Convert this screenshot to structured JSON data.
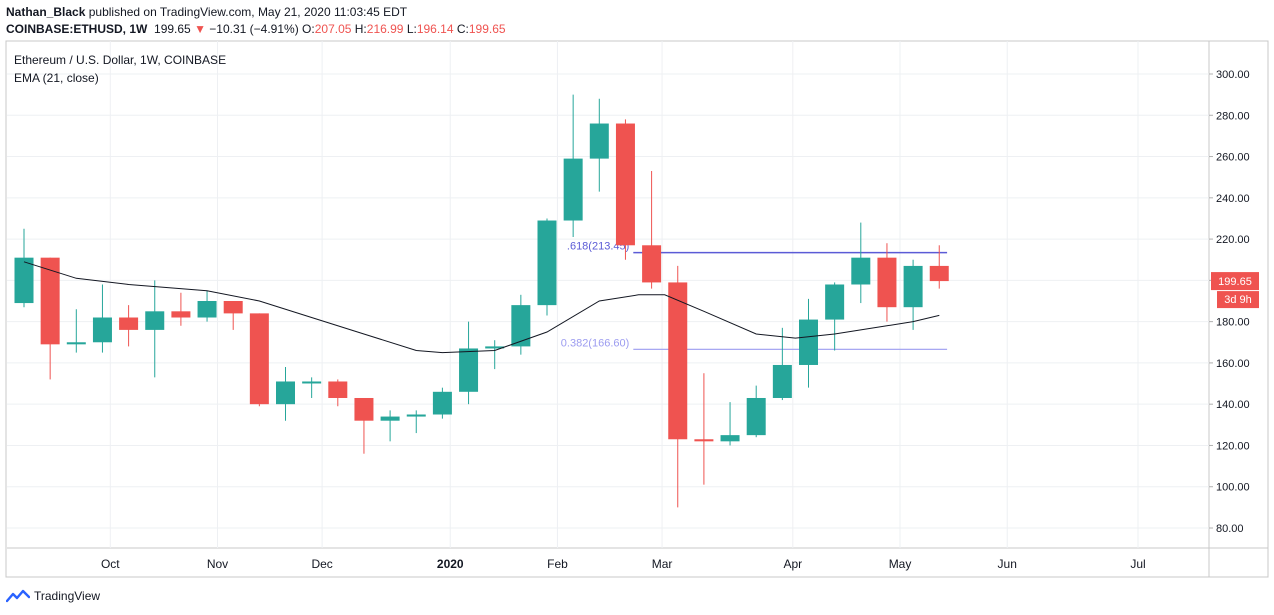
{
  "header": {
    "author": "Nathan_Black",
    "published_text": "published on TradingView.com, May 21, 2020 11:03:45 EDT",
    "symbol": "COINBASE:ETHUSD, 1W",
    "price": "199.65",
    "change_arrow": "▼",
    "change": "−10.31 (−4.91%)",
    "o_label": "O:",
    "o_val": "207.05",
    "h_label": "H:",
    "h_val": "216.99",
    "l_label": "L:",
    "l_val": "196.14",
    "c_label": "C:",
    "c_val": "199.65"
  },
  "legend": {
    "series_title": "Ethereum / U.S. Dollar, 1W, COINBASE",
    "indicator": "EMA (21, close)"
  },
  "footer": {
    "brand": "TradingView"
  },
  "colors": {
    "up": "#26a69a",
    "down": "#ef5350",
    "ema": "#131722",
    "fib": "#5b5bd6",
    "fib_light": "#9c9cf0"
  },
  "chart_data": {
    "type": "candlestick",
    "ylim": [
      70,
      310
    ],
    "y_ticks": [
      "300.00",
      "280.00",
      "260.00",
      "240.00",
      "220.00",
      "200.00",
      "180.00",
      "160.00",
      "140.00",
      "120.00",
      "100.00",
      "80.00"
    ],
    "x_tick_labels": [
      {
        "label": "Oct",
        "bar": 3.3
      },
      {
        "label": "Nov",
        "bar": 7.4
      },
      {
        "label": "Dec",
        "bar": 11.4
      },
      {
        "label": "2020",
        "bar": 16.3
      },
      {
        "label": "Feb",
        "bar": 20.4
      },
      {
        "label": "Mar",
        "bar": 24.4
      },
      {
        "label": "Apr",
        "bar": 29.4
      },
      {
        "label": "May",
        "bar": 33.5
      },
      {
        "label": "Jun",
        "bar": 37.6
      },
      {
        "label": "Jul",
        "bar": 42.6
      }
    ],
    "candles": [
      {
        "o": 189,
        "h": 225,
        "l": 187,
        "c": 211
      },
      {
        "o": 211,
        "h": 211,
        "l": 152,
        "c": 169
      },
      {
        "o": 169,
        "h": 186,
        "l": 165,
        "c": 170
      },
      {
        "o": 170,
        "h": 198,
        "l": 165,
        "c": 182
      },
      {
        "o": 182,
        "h": 188,
        "l": 168,
        "c": 176
      },
      {
        "o": 176,
        "h": 200,
        "l": 153,
        "c": 185
      },
      {
        "o": 185,
        "h": 194,
        "l": 178,
        "c": 182
      },
      {
        "o": 182,
        "h": 195,
        "l": 180,
        "c": 190
      },
      {
        "o": 190,
        "h": 190,
        "l": 176,
        "c": 184
      },
      {
        "o": 184,
        "h": 184,
        "l": 139,
        "c": 140
      },
      {
        "o": 140,
        "h": 158,
        "l": 132,
        "c": 151
      },
      {
        "o": 151,
        "h": 153,
        "l": 143,
        "c": 151
      },
      {
        "o": 151,
        "h": 152,
        "l": 139,
        "c": 143
      },
      {
        "o": 143,
        "h": 143,
        "l": 116,
        "c": 132
      },
      {
        "o": 132,
        "h": 137,
        "l": 122,
        "c": 134
      },
      {
        "o": 134,
        "h": 137,
        "l": 126,
        "c": 135
      },
      {
        "o": 135,
        "h": 148,
        "l": 133,
        "c": 146
      },
      {
        "o": 146,
        "h": 180,
        "l": 140,
        "c": 167
      },
      {
        "o": 167,
        "h": 171,
        "l": 157,
        "c": 168
      },
      {
        "o": 168,
        "h": 193,
        "l": 164,
        "c": 188
      },
      {
        "o": 188,
        "h": 230,
        "l": 183,
        "c": 229
      },
      {
        "o": 229,
        "h": 290,
        "l": 221,
        "c": 259
      },
      {
        "o": 259,
        "h": 288,
        "l": 243,
        "c": 276
      },
      {
        "o": 276,
        "h": 278,
        "l": 210,
        "c": 217
      },
      {
        "o": 217,
        "h": 253,
        "l": 196,
        "c": 199
      },
      {
        "o": 199,
        "h": 207,
        "l": 90,
        "c": 123
      },
      {
        "o": 123,
        "h": 155,
        "l": 101,
        "c": 122
      },
      {
        "o": 122,
        "h": 141,
        "l": 120,
        "c": 125
      },
      {
        "o": 125,
        "h": 149,
        "l": 124,
        "c": 143
      },
      {
        "o": 143,
        "h": 177,
        "l": 142,
        "c": 159
      },
      {
        "o": 159,
        "h": 191,
        "l": 148,
        "c": 181
      },
      {
        "o": 181,
        "h": 199,
        "l": 166,
        "c": 198
      },
      {
        "o": 198,
        "h": 228,
        "l": 189,
        "c": 211
      },
      {
        "o": 211,
        "h": 218,
        "l": 180,
        "c": 187
      },
      {
        "o": 187,
        "h": 210,
        "l": 176,
        "c": 207
      },
      {
        "o": 207,
        "h": 217,
        "l": 196,
        "c": 199.65
      }
    ],
    "ema": [
      {
        "bar": 0,
        "v": 209
      },
      {
        "bar": 2,
        "v": 201
      },
      {
        "bar": 4,
        "v": 198
      },
      {
        "bar": 7,
        "v": 195
      },
      {
        "bar": 9,
        "v": 190
      },
      {
        "bar": 11,
        "v": 182
      },
      {
        "bar": 13,
        "v": 174
      },
      {
        "bar": 15,
        "v": 166
      },
      {
        "bar": 16,
        "v": 165
      },
      {
        "bar": 18,
        "v": 166
      },
      {
        "bar": 20,
        "v": 175
      },
      {
        "bar": 22,
        "v": 190
      },
      {
        "bar": 23.5,
        "v": 193
      },
      {
        "bar": 24.5,
        "v": 193
      },
      {
        "bar": 26,
        "v": 185
      },
      {
        "bar": 28,
        "v": 174
      },
      {
        "bar": 29.5,
        "v": 172
      },
      {
        "bar": 31,
        "v": 174
      },
      {
        "bar": 33,
        "v": 178
      },
      {
        "bar": 34,
        "v": 180
      },
      {
        "bar": 35,
        "v": 183
      }
    ],
    "fib_levels": [
      {
        "label": ".618(213.45)",
        "value": 213.45,
        "from_bar": 23.3,
        "to_bar": 35.3
      },
      {
        "label": "0.382(166.60)",
        "value": 166.6,
        "from_bar": 23.3,
        "to_bar": 35.3
      }
    ],
    "last_price_label": "199.65",
    "countdown_label": "3d 9h"
  }
}
